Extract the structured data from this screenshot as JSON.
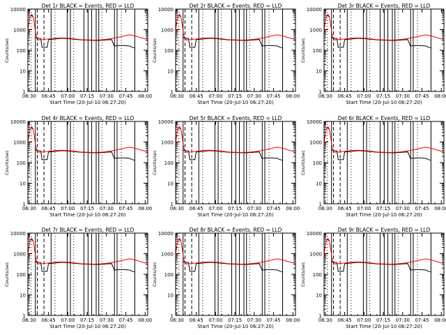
{
  "chart_data": [
    {
      "type": "line",
      "title": "Det 1r  BLACK = Events, RED = LLD",
      "xlabel": "Start Time (20-Jul-10 06:27:20)",
      "ylabel": "Counts/sec",
      "x_ticks": [
        "06:30",
        "06:45",
        "07:00",
        "07:15",
        "07:30",
        "07:45",
        "08:00"
      ],
      "y_ticks": [
        "1",
        "10",
        "100",
        "1000",
        "10000"
      ],
      "ylim": [
        1,
        10000
      ],
      "y_scale": "log",
      "series": [
        {
          "name": "BLACK = Events",
          "color": "#000000"
        },
        {
          "name": "RED = LLD",
          "color": "#ff0000"
        }
      ]
    },
    {
      "type": "line",
      "title": "Det 2r  BLACK = Events, RED = LLD",
      "xlabel": "Start Time (20-Jul-10 06:27:20)",
      "ylabel": "Counts/sec",
      "x_ticks": [
        "06:30",
        "06:45",
        "07:00",
        "07:15",
        "07:30",
        "07:45",
        "08:00"
      ],
      "y_ticks": [
        "1",
        "10",
        "100",
        "1000",
        "10000"
      ],
      "ylim": [
        1,
        10000
      ],
      "y_scale": "log",
      "series": [
        {
          "name": "BLACK = Events",
          "color": "#000000"
        },
        {
          "name": "RED = LLD",
          "color": "#ff0000"
        }
      ]
    },
    {
      "type": "line",
      "title": "Det 3r  BLACK = Events, RED = LLD",
      "xlabel": "Start Time (20-Jul-10 06:27:20)",
      "ylabel": "Counts/sec",
      "x_ticks": [
        "06:30",
        "06:45",
        "07:00",
        "07:15",
        "07:30",
        "07:45",
        "08:00"
      ],
      "y_ticks": [
        "1",
        "10",
        "100",
        "1000",
        "10000"
      ],
      "ylim": [
        1,
        10000
      ],
      "y_scale": "log",
      "series": [
        {
          "name": "BLACK = Events",
          "color": "#000000"
        },
        {
          "name": "RED = LLD",
          "color": "#ff0000"
        }
      ]
    },
    {
      "type": "line",
      "title": "Det 4r  BLACK = Events, RED = LLD",
      "xlabel": "Start Time (20-Jul-10 06:27:20)",
      "ylabel": "Counts/sec",
      "x_ticks": [
        "06:30",
        "06:45",
        "07:00",
        "07:15",
        "07:30",
        "07:45",
        "08:00"
      ],
      "y_ticks": [
        "1",
        "10",
        "100",
        "1000",
        "10000"
      ],
      "ylim": [
        1,
        10000
      ],
      "y_scale": "log",
      "series": [
        {
          "name": "BLACK = Events",
          "color": "#000000"
        },
        {
          "name": "RED = LLD",
          "color": "#ff0000"
        }
      ]
    },
    {
      "type": "line",
      "title": "Det 5r  BLACK = Events, RED = LLD",
      "xlabel": "Start Time (20-Jul-10 06:27:20)",
      "ylabel": "Counts/sec",
      "x_ticks": [
        "06:30",
        "06:45",
        "07:00",
        "07:15",
        "07:30",
        "07:45",
        "08:00"
      ],
      "y_ticks": [
        "1",
        "10",
        "100",
        "1000",
        "10000"
      ],
      "ylim": [
        1,
        10000
      ],
      "y_scale": "log",
      "series": [
        {
          "name": "BLACK = Events",
          "color": "#000000"
        },
        {
          "name": "RED = LLD",
          "color": "#ff0000"
        }
      ]
    },
    {
      "type": "line",
      "title": "Det 6r  BLACK = Events, RED = LLD",
      "xlabel": "Start Time (20-Jul-10 06:27:20)",
      "ylabel": "Counts/sec",
      "x_ticks": [
        "06:30",
        "06:45",
        "07:00",
        "07:15",
        "07:30",
        "07:45",
        "08:00"
      ],
      "y_ticks": [
        "1",
        "10",
        "100",
        "1000",
        "10000"
      ],
      "ylim": [
        1,
        10000
      ],
      "y_scale": "log",
      "series": [
        {
          "name": "BLACK = Events",
          "color": "#000000"
        },
        {
          "name": "RED = LLD",
          "color": "#ff0000"
        }
      ]
    },
    {
      "type": "line",
      "title": "Det 7r  BLACK = Events, RED = LLD",
      "xlabel": "Start Time (20-Jul-10 06:27:20)",
      "ylabel": "Counts/sec",
      "x_ticks": [
        "06:30",
        "06:45",
        "07:00",
        "07:15",
        "07:30",
        "07:45",
        "08:00"
      ],
      "y_ticks": [
        "1",
        "10",
        "100",
        "1000",
        "10000"
      ],
      "ylim": [
        1,
        10000
      ],
      "y_scale": "log",
      "series": [
        {
          "name": "BLACK = Events",
          "color": "#000000"
        },
        {
          "name": "RED = LLD",
          "color": "#ff0000"
        }
      ]
    },
    {
      "type": "line",
      "title": "Det 8r  BLACK = Events, RED = LLD",
      "xlabel": "Start Time (20-Jul-10 06:27:20)",
      "ylabel": "Counts/sec",
      "x_ticks": [
        "06:30",
        "06:45",
        "07:00",
        "07:15",
        "07:30",
        "07:45",
        "08:00"
      ],
      "y_ticks": [
        "1",
        "10",
        "100",
        "1000",
        "10000"
      ],
      "ylim": [
        1,
        10000
      ],
      "y_scale": "log",
      "series": [
        {
          "name": "BLACK = Events",
          "color": "#000000"
        },
        {
          "name": "RED = LLD",
          "color": "#ff0000"
        }
      ]
    },
    {
      "type": "line",
      "title": "Det 9r  BLACK = Events, RED = LLD",
      "xlabel": "Start Time (20-Jul-10 06:27:20)",
      "ylabel": "Counts/sec",
      "x_ticks": [
        "06:30",
        "06:45",
        "07:00",
        "07:15",
        "07:30",
        "07:45",
        "08:00"
      ],
      "y_ticks": [
        "1",
        "10",
        "100",
        "1000",
        "10000"
      ],
      "ylim": [
        1,
        10000
      ],
      "y_scale": "log",
      "series": [
        {
          "name": "BLACK = Events",
          "color": "#000000"
        },
        {
          "name": "RED = LLD",
          "color": "#ff0000"
        }
      ]
    }
  ]
}
